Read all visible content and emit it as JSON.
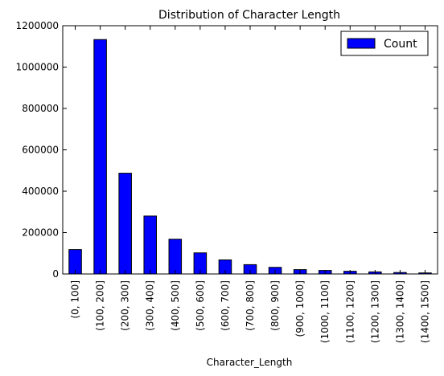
{
  "chart_data": {
    "type": "bar",
    "title": "Distribution of Character Length",
    "xlabel": "Character_Length",
    "ylabel": "",
    "categories": [
      "(0, 100]",
      "(100, 200]",
      "(200, 300]",
      "(300, 400]",
      "(400, 500]",
      "(500, 600]",
      "(600, 700]",
      "(700, 800]",
      "(800, 900]",
      "(900, 1000]",
      "(1000, 1100]",
      "(1100, 1200]",
      "(1200, 1300]",
      "(1300, 1400]",
      "(1400, 1500]"
    ],
    "series": [
      {
        "name": "Count",
        "color": "#0000ff",
        "values": [
          118000,
          1133000,
          487000,
          280000,
          168000,
          102000,
          68000,
          45000,
          32000,
          21000,
          17000,
          13000,
          10000,
          7000,
          5000
        ]
      }
    ],
    "ylim": [
      0,
      1200000
    ],
    "yticks": [
      "0",
      "200000",
      "400000",
      "600000",
      "800000",
      "1000000",
      "1200000"
    ],
    "yticks_values": [
      0,
      200000,
      400000,
      600000,
      800000,
      1000000,
      1200000
    ],
    "grid": false,
    "legend": "top-right"
  }
}
